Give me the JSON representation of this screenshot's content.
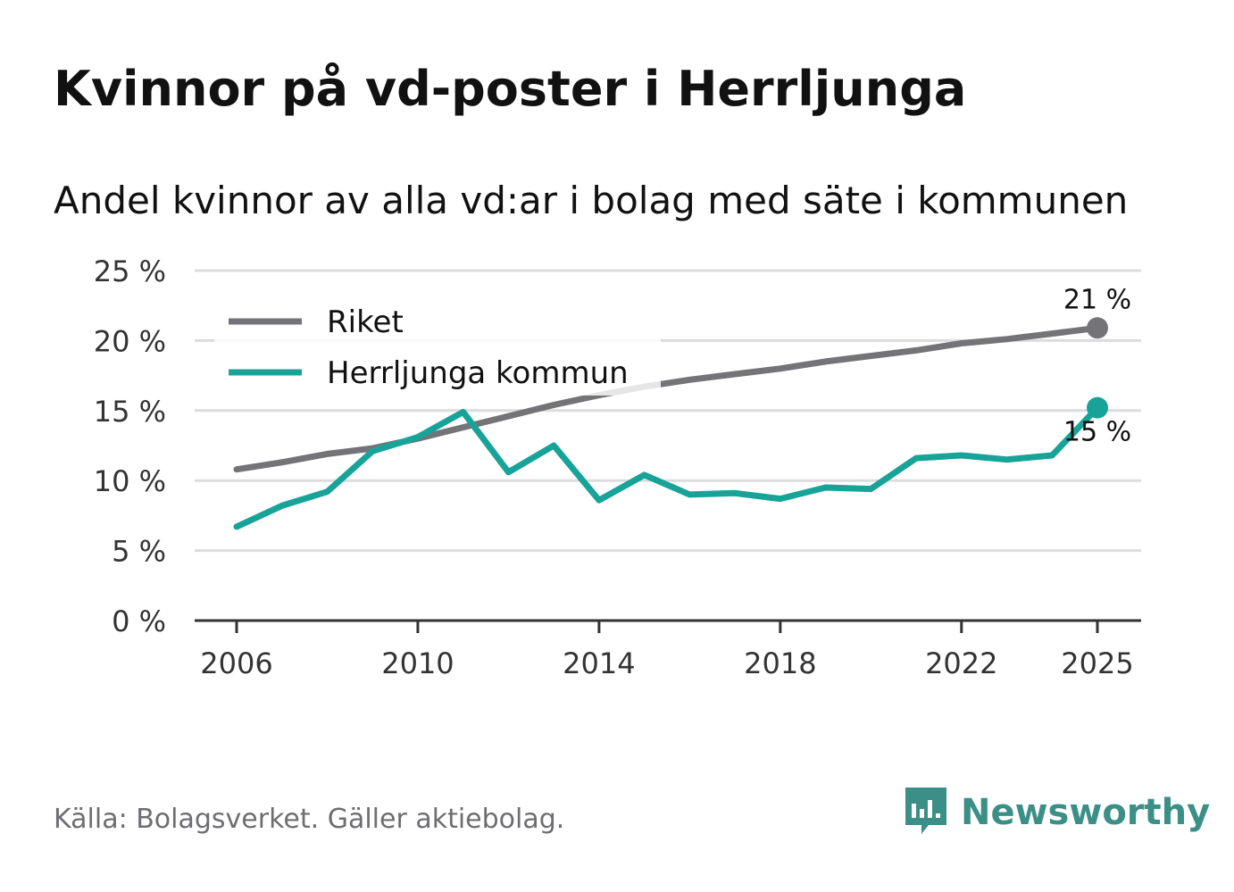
{
  "title": "Kvinnor på vd-poster i Herrljunga",
  "subtitle": "Andel kvinnor av alla vd:ar i bolag med säte i kommunen",
  "source": "Källa: Bolagsverket. Gäller aktiebolag.",
  "brand": {
    "name": "Newsworthy",
    "icon": "newsworthy-logo-icon",
    "color": "#3b8f86"
  },
  "chart_data": {
    "type": "line",
    "title": "Kvinnor på vd-poster i Herrljunga",
    "subtitle": "Andel kvinnor av alla vd:ar i bolag med säte i kommunen",
    "xlabel": "",
    "ylabel": "",
    "x": [
      2006,
      2007,
      2008,
      2009,
      2010,
      2011,
      2012,
      2013,
      2014,
      2015,
      2016,
      2017,
      2018,
      2019,
      2020,
      2021,
      2022,
      2023,
      2024,
      2025
    ],
    "x_ticks": [
      2006,
      2010,
      2014,
      2018,
      2022,
      2025
    ],
    "y_ticks": [
      0,
      5,
      10,
      15,
      20,
      25
    ],
    "y_tick_labels": [
      "0 %",
      "5 %",
      "10 %",
      "15 %",
      "20 %",
      "25 %"
    ],
    "ylim": [
      0,
      25
    ],
    "grid": true,
    "legend_position": "top-left",
    "series": [
      {
        "name": "Riket",
        "color": "#737378",
        "values": [
          10.8,
          11.3,
          11.9,
          12.3,
          13.0,
          13.8,
          14.6,
          15.4,
          16.1,
          16.7,
          17.2,
          17.6,
          18.0,
          18.5,
          18.9,
          19.3,
          19.8,
          20.1,
          20.5,
          20.9
        ],
        "end_label": "21 %"
      },
      {
        "name": "Herrljunga kommun",
        "color": "#17a398",
        "values": [
          6.7,
          8.2,
          9.2,
          12.1,
          13.1,
          14.9,
          10.6,
          12.5,
          8.6,
          10.4,
          9.0,
          9.1,
          8.7,
          9.5,
          9.4,
          11.6,
          11.8,
          11.5,
          11.8,
          15.2
        ],
        "end_label": "15 %"
      }
    ]
  }
}
